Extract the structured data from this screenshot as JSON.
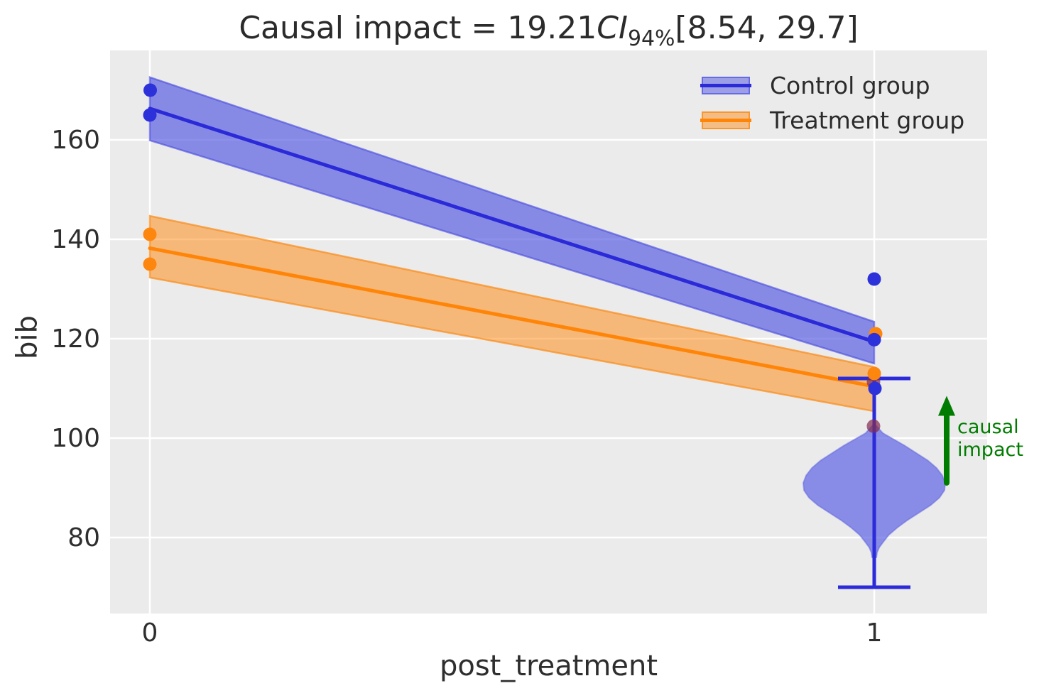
{
  "title": {
    "prefix": "Causal impact = 19.21",
    "ci": "CI",
    "ci_sub": "94%",
    "interval": "[8.54, 29.7]"
  },
  "axes": {
    "xlabel": "post_treatment",
    "ylabel": "bib",
    "xlim": [
      -0.0549,
      1.1559
    ],
    "ylim": [
      64.71,
      178.0
    ],
    "xticks": [
      {
        "value": 0,
        "label": "0"
      },
      {
        "value": 1,
        "label": "1"
      }
    ],
    "yticks": [
      {
        "value": 80,
        "label": "80"
      },
      {
        "value": 100,
        "label": "100"
      },
      {
        "value": 120,
        "label": "120"
      },
      {
        "value": 140,
        "label": "140"
      },
      {
        "value": 160,
        "label": "160"
      }
    ],
    "background": "#ebebeb",
    "gridline_color": "#ffffff",
    "grid": "on"
  },
  "legend": {
    "position": "upper-right",
    "entries": [
      {
        "label": "Control group",
        "band_color": "rgba(92,97,226,0.55)",
        "edge_color": "rgba(85,90,225,0.75)",
        "line_color": "#2a2ad8"
      },
      {
        "label": "Treatment group",
        "band_color": "rgba(255,133,8,0.45)",
        "edge_color": "rgba(250,140,25,0.8)",
        "line_color": "#ff8508"
      }
    ]
  },
  "chart_data": {
    "type": "line",
    "title": "Causal impact = 19.21 CI_94% [8.54, 29.7]",
    "xlabel": "post_treatment",
    "ylabel": "bib",
    "x": [
      0,
      1
    ],
    "series": [
      {
        "name": "Control group",
        "line": [
          166.3,
          119.4
        ],
        "band_upper": [
          172.6,
          123.4
        ],
        "band_lower": [
          159.9,
          115.0
        ],
        "line_color": "#2a2ad8",
        "band_fill": "rgba(92,97,226,0.70)",
        "band_edge": "rgba(75,80,222,0.65)"
      },
      {
        "name": "Treatment group",
        "line": [
          138.2,
          110.4
        ],
        "band_upper": [
          144.7,
          114.3
        ],
        "band_lower": [
          132.3,
          105.4
        ],
        "line_color": "#ff8508",
        "band_fill": "rgba(255,133,8,0.50)",
        "band_edge": "rgba(250,140,25,0.70)"
      }
    ],
    "points": [
      {
        "group": "control",
        "x": 0.0005,
        "y": 170.0
      },
      {
        "group": "control",
        "x": 0.0,
        "y": 165.0
      },
      {
        "group": "control",
        "x": 1.0,
        "y": 132.0
      },
      {
        "group": "control",
        "x": 1.0,
        "y": 119.8
      },
      {
        "group": "control",
        "x": 1.001,
        "y": 110.0
      },
      {
        "group": "treatment",
        "x": 0.0,
        "y": 141.0
      },
      {
        "group": "treatment",
        "x": 0.0,
        "y": 135.0
      },
      {
        "group": "treatment",
        "x": 1.002,
        "y": 121.0
      },
      {
        "group": "treatment",
        "x": 1.0,
        "y": 113.0
      },
      {
        "group": "counterfactual",
        "x": 0.999,
        "y": 111.3
      },
      {
        "group": "counterfactual",
        "x": 0.999,
        "y": 102.4
      }
    ],
    "point_colors": {
      "control": "#2d31da",
      "treatment": "#fd860f",
      "counterfactual": "rgba(130,45,80,0.72)"
    },
    "violin": {
      "x": 1.0,
      "fill": "rgba(95,100,228,0.70)",
      "edge": "rgba(85,90,222,0.45)",
      "profile": [
        [
          102.6,
          0.002
        ],
        [
          101.0,
          0.012
        ],
        [
          100.0,
          0.024
        ],
        [
          98.5,
          0.042
        ],
        [
          97.0,
          0.058
        ],
        [
          95.5,
          0.074
        ],
        [
          94.0,
          0.086
        ],
        [
          92.5,
          0.094
        ],
        [
          91.0,
          0.098
        ],
        [
          89.5,
          0.097
        ],
        [
          88.0,
          0.09
        ],
        [
          86.5,
          0.078
        ],
        [
          85.0,
          0.062
        ],
        [
          83.5,
          0.046
        ],
        [
          82.0,
          0.032
        ],
        [
          80.5,
          0.02
        ],
        [
          79.0,
          0.012
        ],
        [
          78.0,
          0.007
        ],
        [
          77.0,
          0.004
        ],
        [
          76.0,
          0.003
        ]
      ]
    },
    "errorbar": {
      "x": 1.0,
      "low": 70.0,
      "high": 112.0,
      "cap_halfwidth": 0.05,
      "color": "#2b2bd9"
    },
    "impact_arrow": {
      "x": 1.1,
      "base": 91.0,
      "head_base": 104.5,
      "tip": 108.5,
      "color": "#007d00",
      "label_lines": [
        "causal",
        "impact"
      ]
    }
  }
}
